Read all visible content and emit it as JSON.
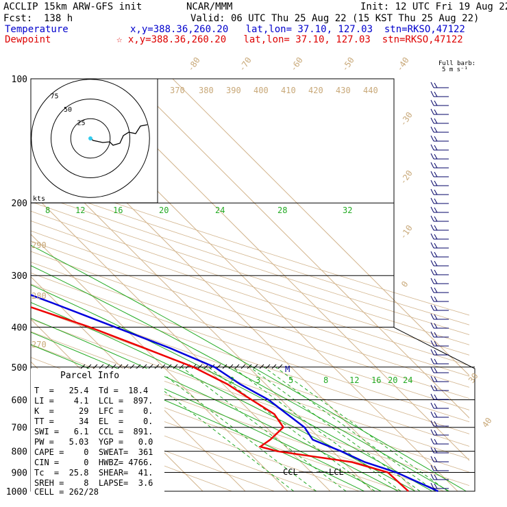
{
  "header": {
    "model": "ACCLIP 15km ARW-GFS init",
    "org": "NCAR/MMM",
    "init": "Init: 12 UTC Fri 19 Aug 22",
    "fcst": "Fcst:  138 h",
    "valid": "Valid: 06 UTC Thu 25 Aug 22 (15 KST Thu 25 Aug 22)",
    "temp_label": "Temperature",
    "temp_info": "x,y=388.36,260.20   lat,lon= 37.10, 127.03  stn=RKSO,47122",
    "dew_label": "Dewpoint",
    "dew_info": "☆ x,y=388.36,260.20   lat,lon= 37.10, 127.03  stn=RKSO,47122"
  },
  "barb_legend": [
    "Full barb:",
    "5 m s⁻¹"
  ],
  "colors": {
    "temperature": "#0000dd",
    "dewpoint": "#ee0000",
    "isotherm": "#d2b48c",
    "mixing_ratio": "#22aa22",
    "isobar": "#000000"
  },
  "parcel_info": {
    "title": "Parcel Info",
    "rows": [
      "T  =   25.4  Td =  18.4",
      "LI =    4.1  LCL =  897.",
      "K  =     29  LFC =    0.",
      "TT =     34  EL  =    0.",
      "SWI =   6.1  CCL =  891.",
      "PW =   5.03  YGP =   0.0",
      "CAPE =    0  SWEAT=  361",
      "CIN =     0  HWBZ= 4766.",
      "Tc  =  25.8  SHEAR=  41.",
      "SREH =    8  LAPSE=  3.6",
      "CELL = 262/28"
    ]
  },
  "hodograph": {
    "rings": [
      "75",
      "50",
      "25"
    ],
    "units": "kts"
  },
  "chart_data": {
    "type": "line",
    "title": "",
    "ylabel": "",
    "yaxis": {
      "scale": "log",
      "ticks": [
        100,
        200,
        300,
        400,
        500,
        600,
        700,
        800,
        900,
        1000
      ]
    },
    "isotherm_labels": [
      "-80",
      "-70",
      "-60",
      "-50",
      "-40",
      "-30",
      "-20",
      "-10",
      "0",
      "30",
      "40"
    ],
    "theta_labels": [
      "370",
      "380",
      "390",
      "400",
      "410",
      "420",
      "430",
      "440",
      "290",
      "280",
      "270"
    ],
    "mixing_ratio_labels_top": [
      "8",
      "12",
      "16",
      "20",
      "24",
      "28",
      "32"
    ],
    "mixing_ratio_labels_bottom": [
      "2",
      "3",
      "5",
      "8",
      "12",
      "16",
      "20",
      "24"
    ],
    "markers": [
      "M",
      "CCL",
      "LCL"
    ],
    "series": [
      {
        "name": "Temperature",
        "p": [
          100,
          120,
          150,
          170,
          200,
          250,
          300,
          350,
          400,
          450,
          500,
          550,
          600,
          650,
          700,
          750,
          800,
          850,
          900,
          1000
        ],
        "t": [
          -73,
          -72,
          -70,
          -69,
          -60,
          -45,
          -32,
          -21,
          -12,
          -4,
          2,
          4,
          7,
          8,
          9,
          8,
          12,
          15,
          20,
          25.4
        ]
      },
      {
        "name": "Dewpoint",
        "p": [
          100,
          120,
          150,
          170,
          200,
          220,
          250,
          270,
          300,
          350,
          400,
          450,
          500,
          550,
          600,
          650,
          700,
          750,
          780,
          800,
          850,
          900,
          1000
        ],
        "t": [
          -83,
          -82,
          -78,
          -76,
          -68,
          -66,
          -67,
          -56,
          -44,
          -29,
          -18,
          -10,
          -3,
          1,
          3,
          5,
          4,
          -2,
          -6,
          -3,
          12,
          18,
          18.4
        ]
      }
    ]
  }
}
